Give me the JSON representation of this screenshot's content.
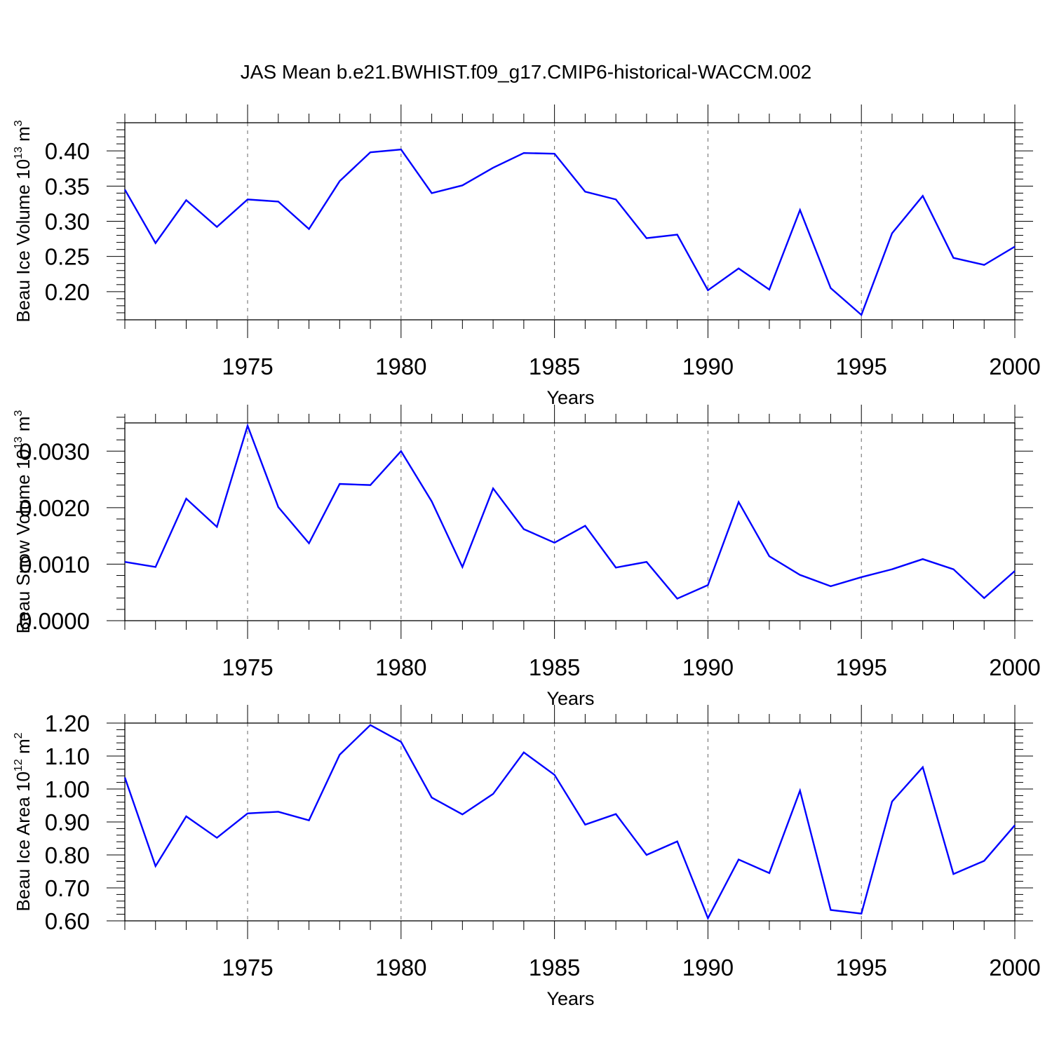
{
  "chart_data": {
    "title": "JAS Mean b.e21.BWHIST.f09_g17.CMIP6-historical-WACCM.002",
    "line_color": "#0000ff",
    "x": [
      1971,
      1972,
      1973,
      1974,
      1975,
      1976,
      1977,
      1978,
      1979,
      1980,
      1981,
      1982,
      1983,
      1984,
      1985,
      1986,
      1987,
      1988,
      1989,
      1990,
      1991,
      1992,
      1993,
      1994,
      1995,
      1996,
      1997,
      1998,
      1999,
      2000
    ],
    "xlim": [
      1971,
      2000
    ],
    "x_ticks": [
      1975,
      1980,
      1985,
      1990,
      1995,
      2000
    ],
    "x_tick_labels": [
      "1975",
      "1980",
      "1985",
      "1990",
      "1995",
      "2000"
    ],
    "panels": [
      {
        "type": "line",
        "xlabel": "Years",
        "ylabel_main": "Beau Ice Volume 10",
        "ylabel_exp": "13",
        "ylabel_unit": " m",
        "ylabel_unit_exp": "3",
        "ylim": [
          0.16,
          0.44
        ],
        "y_ticks": [
          0.2,
          0.25,
          0.3,
          0.35,
          0.4
        ],
        "y_tick_labels": [
          "0.20",
          "0.25",
          "0.30",
          "0.35",
          "0.40"
        ],
        "y_minor_step": 0.01,
        "values": [
          0.345,
          0.269,
          0.33,
          0.292,
          0.331,
          0.328,
          0.289,
          0.357,
          0.398,
          0.402,
          0.34,
          0.351,
          0.376,
          0.397,
          0.396,
          0.342,
          0.331,
          0.276,
          0.281,
          0.202,
          0.233,
          0.203,
          0.316,
          0.205,
          0.167,
          0.283,
          0.336,
          0.248,
          0.238,
          0.264
        ]
      },
      {
        "type": "line",
        "xlabel": "Years",
        "ylabel_main": "Beau Snow Volume 10",
        "ylabel_exp": "13",
        "ylabel_unit": " m",
        "ylabel_unit_exp": "3",
        "ylim": [
          0.0,
          0.0035
        ],
        "y_ticks": [
          0.0,
          0.001,
          0.002,
          0.003
        ],
        "y_tick_labels": [
          "0.0000",
          "0.0010",
          "0.0020",
          "0.0030"
        ],
        "y_minor_step": 0.0002,
        "values": [
          0.00104,
          0.00095,
          0.00216,
          0.00166,
          0.00345,
          0.00201,
          0.00137,
          0.00242,
          0.0024,
          0.003,
          0.00211,
          0.00095,
          0.00234,
          0.00162,
          0.00138,
          0.00168,
          0.00094,
          0.00104,
          0.00039,
          0.00063,
          0.0021,
          0.00114,
          0.00081,
          0.00061,
          0.00077,
          0.00091,
          0.00109,
          0.00091,
          0.0004,
          0.00088
        ]
      },
      {
        "type": "line",
        "xlabel": "Years",
        "ylabel_main": "Beau Ice Area 10",
        "ylabel_exp": "12",
        "ylabel_unit": " m",
        "ylabel_unit_exp": "2",
        "ylim": [
          0.6,
          1.2
        ],
        "y_ticks": [
          0.6,
          0.7,
          0.8,
          0.9,
          1.0,
          1.1,
          1.2
        ],
        "y_tick_labels": [
          "0.60",
          "0.70",
          "0.80",
          "0.90",
          "1.00",
          "1.10",
          "1.20"
        ],
        "y_minor_step": 0.02,
        "values": [
          1.035,
          0.766,
          0.917,
          0.852,
          0.926,
          0.931,
          0.905,
          1.104,
          1.194,
          1.143,
          0.974,
          0.923,
          0.985,
          1.111,
          1.043,
          0.892,
          0.924,
          0.8,
          0.841,
          0.608,
          0.786,
          0.745,
          0.995,
          0.633,
          0.622,
          0.962,
          1.066,
          0.742,
          0.782,
          0.89
        ]
      }
    ]
  }
}
